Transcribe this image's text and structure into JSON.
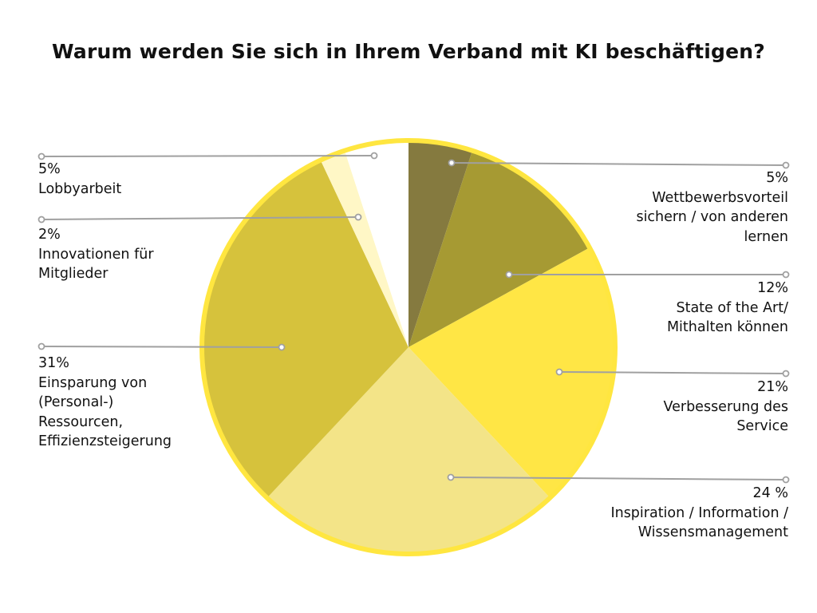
{
  "chart_data": {
    "type": "pie",
    "title": "Warum werden Sie sich in Ihrem Verband mit KI beschäftigen?",
    "slices": [
      {
        "value": 5,
        "pct_label": "5%",
        "label_lines": [
          "Wettbewerbsvorteil",
          "sichern / von anderen",
          "lernen"
        ],
        "color": "#857a3f",
        "side": "right"
      },
      {
        "value": 12,
        "pct_label": "12%",
        "label_lines": [
          "State of the Art/",
          "Mithalten können"
        ],
        "color": "#a69a33",
        "side": "right"
      },
      {
        "value": 21,
        "pct_label": "21%",
        "label_lines": [
          "Verbesserung des",
          "Service"
        ],
        "color": "#ffe645",
        "side": "right"
      },
      {
        "value": 24,
        "pct_label": "24 %",
        "label_lines": [
          "Inspiration / Information /",
          "Wissensmanagement"
        ],
        "color": "#f3e488",
        "side": "right"
      },
      {
        "value": 31,
        "pct_label": "31%",
        "label_lines": [
          "Einsparung von",
          "(Personal-)",
          "Ressourcen,",
          "Effizienzsteigerung"
        ],
        "color": "#d6c23c",
        "side": "left"
      },
      {
        "value": 2,
        "pct_label": "2%",
        "label_lines": [
          "Innovationen für",
          "Mitglieder"
        ],
        "color": "#fff7c6",
        "side": "left"
      },
      {
        "value": 5,
        "pct_label": "5%",
        "label_lines": [
          "Lobbyarbeit"
        ],
        "color": "#ffffff",
        "side": "left"
      }
    ],
    "outline_color": "#ffe640",
    "leader_color": "#a0a0a0"
  }
}
